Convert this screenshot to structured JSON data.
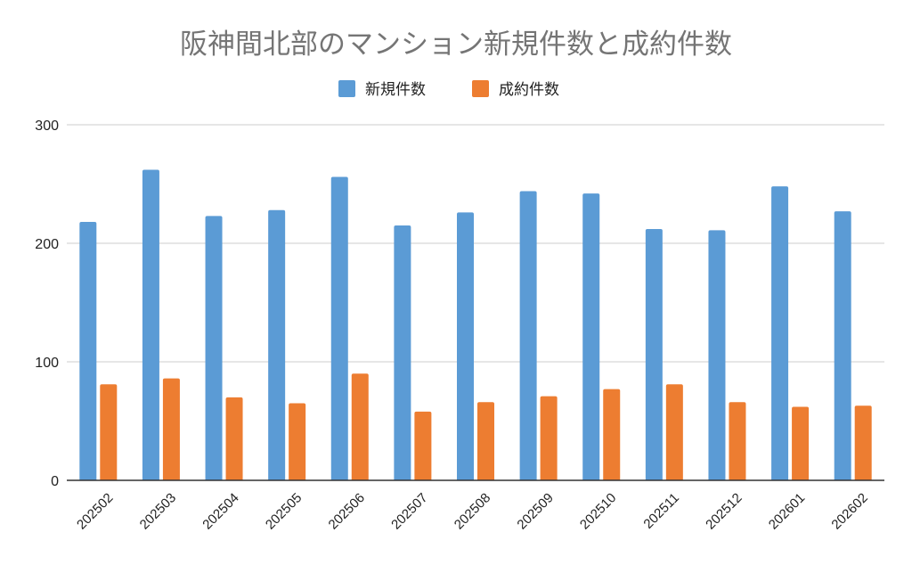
{
  "chart_data": {
    "type": "bar",
    "title": "阪神間北部のマンション新規件数と成約件数",
    "categories": [
      "202502",
      "202503",
      "202504",
      "202505",
      "202506",
      "202507",
      "202508",
      "202509",
      "202510",
      "202511",
      "202512",
      "202601",
      "202602"
    ],
    "series": [
      {
        "name": "新規件数",
        "color": "#5b9bd5",
        "values": [
          218,
          262,
          223,
          228,
          256,
          215,
          226,
          244,
          242,
          212,
          211,
          248,
          227
        ]
      },
      {
        "name": "成約件数",
        "color": "#ed7d31",
        "values": [
          81,
          86,
          70,
          65,
          90,
          58,
          66,
          71,
          77,
          81,
          66,
          62,
          63
        ]
      }
    ],
    "ylim": [
      0,
      300
    ],
    "yticks": [
      0,
      100,
      200,
      300
    ],
    "xlabel": "",
    "ylabel": "",
    "grid": true,
    "legend_position": "top-center"
  }
}
